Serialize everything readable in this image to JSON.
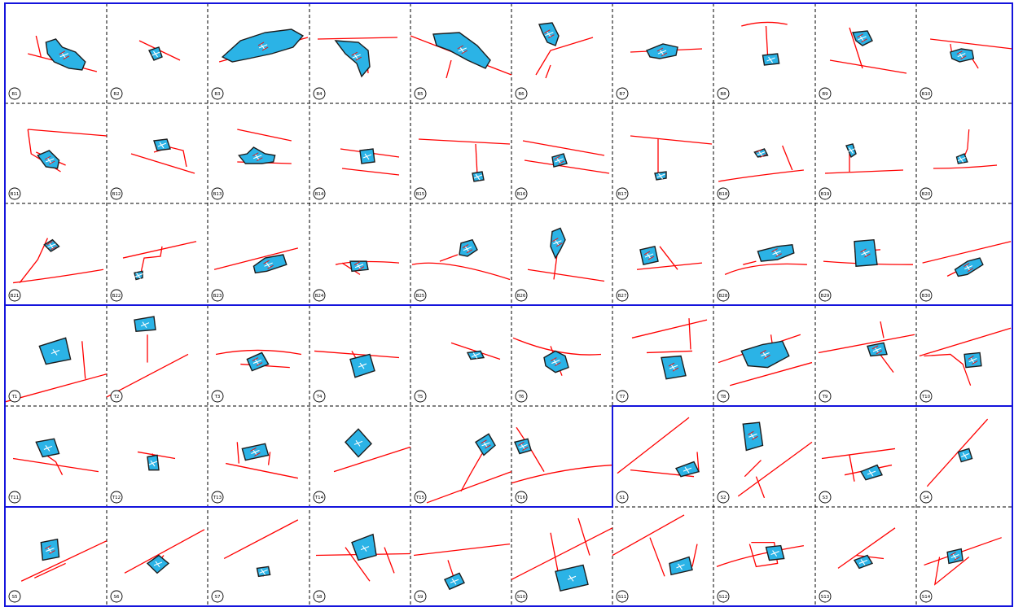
{
  "colors": {
    "background": "#ffffff",
    "grid_line": "#000000",
    "group_border": "#1414dc",
    "road_line": "#ff0000",
    "parcel_fill": "#2bb3e6",
    "parcel_outline": "#1c1c1c"
  },
  "icon": "circled-tile-label",
  "tiles": [
    {
      "label": "B1"
    },
    {
      "label": "B2"
    },
    {
      "label": "B3"
    },
    {
      "label": "B4"
    },
    {
      "label": "B5"
    },
    {
      "label": "B6"
    },
    {
      "label": "B7"
    },
    {
      "label": "B8"
    },
    {
      "label": "B9"
    },
    {
      "label": "B10"
    },
    {
      "label": "B11"
    },
    {
      "label": "B12"
    },
    {
      "label": "B13"
    },
    {
      "label": "B14"
    },
    {
      "label": "B15"
    },
    {
      "label": "B16"
    },
    {
      "label": "B17"
    },
    {
      "label": "B18"
    },
    {
      "label": "B19"
    },
    {
      "label": "B20"
    },
    {
      "label": "B21"
    },
    {
      "label": "B22"
    },
    {
      "label": "B23"
    },
    {
      "label": "B24"
    },
    {
      "label": "B25"
    },
    {
      "label": "B26"
    },
    {
      "label": "B27"
    },
    {
      "label": "B28"
    },
    {
      "label": "B29"
    },
    {
      "label": "B30"
    },
    {
      "label": "T1"
    },
    {
      "label": "T2"
    },
    {
      "label": "T3"
    },
    {
      "label": "T4"
    },
    {
      "label": "T5"
    },
    {
      "label": "T6"
    },
    {
      "label": "T7"
    },
    {
      "label": "T8"
    },
    {
      "label": "T9"
    },
    {
      "label": "T10"
    },
    {
      "label": "T11"
    },
    {
      "label": "T12"
    },
    {
      "label": "T13"
    },
    {
      "label": "T14"
    },
    {
      "label": "T15"
    },
    {
      "label": "T16"
    },
    {
      "label": "S1"
    },
    {
      "label": "S2"
    },
    {
      "label": "S3"
    },
    {
      "label": "S4"
    },
    {
      "label": "S5"
    },
    {
      "label": "S6"
    },
    {
      "label": "S7"
    },
    {
      "label": "S8"
    },
    {
      "label": "S9"
    },
    {
      "label": "S10"
    },
    {
      "label": "S11"
    },
    {
      "label": "S12"
    },
    {
      "label": "S13"
    },
    {
      "label": "S14"
    }
  ]
}
